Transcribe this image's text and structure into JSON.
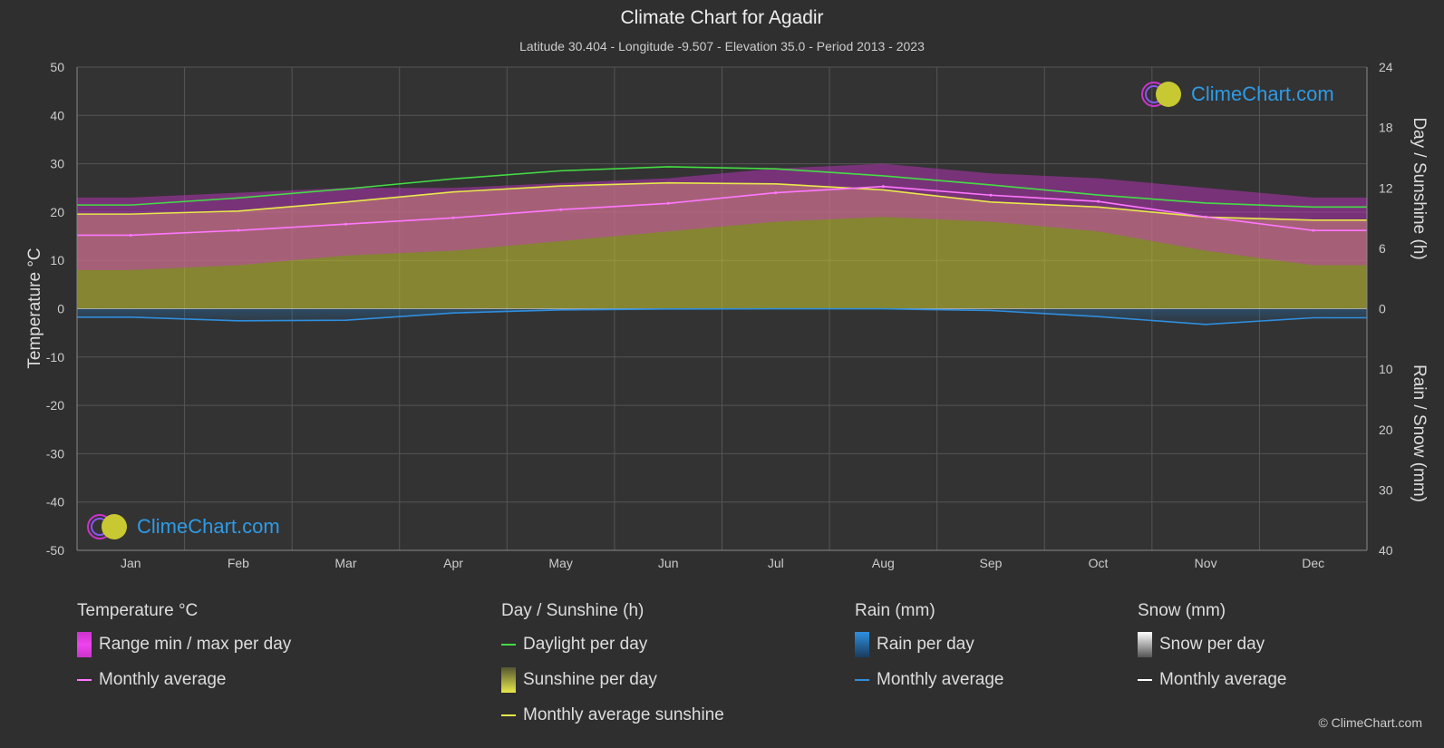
{
  "title": "Climate Chart for Agadir",
  "subtitle": "Latitude 30.404 - Longitude -9.507 - Elevation 35.0 - Period 2013 - 2023",
  "copyright": "© ClimeChart.com",
  "logo_text": "ClimeChart.com",
  "colors": {
    "background": "#2f2f2f",
    "temp_range": "#cc33cc",
    "temp_avg": "#ff77ff",
    "daylight": "#44dd44",
    "sunshine": "#c8c832",
    "sunshine_avg": "#e8e84a",
    "rain": "#1e78c8",
    "rain_avg": "#2e8fe0",
    "snow": "#dddddd",
    "logo_blue": "#2e9be6"
  },
  "legend": {
    "temperature": {
      "title": "Temperature °C",
      "range_label": "Range min / max per day",
      "avg_label": "Monthly average"
    },
    "sunshine": {
      "title": "Day / Sunshine (h)",
      "daylight_label": "Daylight per day",
      "sunshine_label": "Sunshine per day",
      "avg_label": "Monthly average sunshine"
    },
    "rain": {
      "title": "Rain (mm)",
      "per_day_label": "Rain per day",
      "avg_label": "Monthly average"
    },
    "snow": {
      "title": "Snow (mm)",
      "per_day_label": "Snow per day",
      "avg_label": "Monthly average"
    }
  },
  "chart_data": {
    "type": "area",
    "categories": [
      "Jan",
      "Feb",
      "Mar",
      "Apr",
      "May",
      "Jun",
      "Jul",
      "Aug",
      "Sep",
      "Oct",
      "Nov",
      "Dec"
    ],
    "y_left": {
      "label": "Temperature °C",
      "ylim": [
        -50,
        50
      ],
      "ticks": [
        50,
        40,
        30,
        20,
        10,
        0,
        -10,
        -20,
        -30,
        -40,
        -50
      ]
    },
    "y_right_top": {
      "label": "Day / Sunshine (h)",
      "ylim": [
        0,
        24
      ],
      "ticks": [
        24,
        18,
        12,
        6,
        0
      ]
    },
    "y_right_bottom": {
      "label": "Rain / Snow (mm)",
      "ylim": [
        0,
        40
      ],
      "ticks": [
        0,
        10,
        20,
        30,
        40
      ]
    },
    "grid": true,
    "series": [
      {
        "name": "Monthly average",
        "group": "temperature",
        "unit": "°C",
        "values": [
          15.2,
          16.2,
          17.5,
          18.8,
          20.5,
          21.8,
          24.0,
          25.3,
          23.5,
          22.2,
          19.0,
          16.2
        ]
      },
      {
        "name": "Range min / max per day",
        "group": "temperature",
        "unit": "°C",
        "min": [
          8,
          9,
          11,
          12,
          14,
          16,
          18,
          19,
          18,
          16,
          12,
          9
        ],
        "max": [
          23,
          24,
          25,
          25,
          26,
          27,
          29,
          30,
          28,
          27,
          25,
          23
        ]
      },
      {
        "name": "Daylight per day",
        "group": "sunshine",
        "unit": "h",
        "values": [
          10.3,
          11.0,
          11.9,
          12.9,
          13.7,
          14.1,
          13.9,
          13.2,
          12.3,
          11.3,
          10.5,
          10.1
        ]
      },
      {
        "name": "Sunshine per day",
        "group": "sunshine",
        "unit": "h",
        "values": [
          9.4,
          9.7,
          10.6,
          11.6,
          12.2,
          12.5,
          12.4,
          11.8,
          10.6,
          10.1,
          9.1,
          8.8
        ]
      },
      {
        "name": "Monthly average sunshine",
        "group": "sunshine",
        "unit": "h",
        "values": [
          9.4,
          9.7,
          10.6,
          11.6,
          12.2,
          12.5,
          12.4,
          11.8,
          10.6,
          10.1,
          9.1,
          8.8
        ]
      },
      {
        "name": "Monthly average",
        "group": "rain",
        "unit": "mm",
        "values": [
          1.4,
          2.0,
          1.9,
          0.7,
          0.2,
          0.05,
          0.02,
          0.02,
          0.3,
          1.3,
          2.6,
          1.5
        ]
      },
      {
        "name": "Monthly average",
        "group": "snow",
        "unit": "mm",
        "values": [
          0,
          0,
          0,
          0,
          0,
          0,
          0,
          0,
          0,
          0,
          0,
          0
        ]
      }
    ]
  }
}
